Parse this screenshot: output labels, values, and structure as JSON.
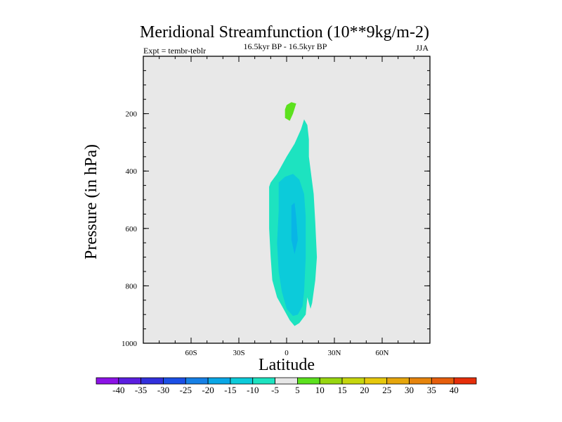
{
  "chart_data": {
    "type": "contour",
    "title": "Meridional Streamfunction (10**9kg/m-2)",
    "subtitle_left": "Expt = tembr-teblr",
    "subtitle_center": "16.5kyr BP - 16.5kyr BP",
    "subtitle_right": "JJA",
    "xlabel": "Latitude",
    "ylabel": "Pressure (in hPa)",
    "xlim": [
      -90,
      90
    ],
    "ylim": [
      0,
      1000
    ],
    "y_inverted": true,
    "plot_background": "#e8e8e8",
    "x_ticks": [
      {
        "value": -60,
        "label": "60S"
      },
      {
        "value": -30,
        "label": "30S"
      },
      {
        "value": 0,
        "label": "0"
      },
      {
        "value": 30,
        "label": "30N"
      },
      {
        "value": 60,
        "label": "60N"
      }
    ],
    "y_ticks": [
      {
        "value": 200,
        "label": "200"
      },
      {
        "value": 400,
        "label": "400"
      },
      {
        "value": 600,
        "label": "600"
      },
      {
        "value": 800,
        "label": "800"
      },
      {
        "value": 1000,
        "label": "1000"
      }
    ],
    "y_minor_step": 50,
    "x_minor_step": 10,
    "regions": [
      {
        "level": "5 to 10",
        "color": "#5ce11e",
        "points": [
          [
            0,
            170
          ],
          [
            3,
            160
          ],
          [
            6,
            165
          ],
          [
            4,
            200
          ],
          [
            2,
            225
          ],
          [
            -1,
            215
          ],
          [
            -1,
            185
          ]
        ]
      },
      {
        "level": "-10 to -5",
        "color": "#1de3c0",
        "points": [
          [
            -11,
            455
          ],
          [
            -10,
            440
          ],
          [
            -6,
            410
          ],
          [
            0,
            350
          ],
          [
            5,
            305
          ],
          [
            9,
            255
          ],
          [
            11,
            220
          ],
          [
            13,
            240
          ],
          [
            14,
            290
          ],
          [
            14,
            350
          ],
          [
            17,
            480
          ],
          [
            18,
            580
          ],
          [
            19,
            700
          ],
          [
            18,
            780
          ],
          [
            16,
            860
          ],
          [
            15,
            880
          ],
          [
            13,
            840
          ],
          [
            12,
            900
          ],
          [
            8,
            930
          ],
          [
            5,
            940
          ],
          [
            2,
            920
          ],
          [
            -2,
            880
          ],
          [
            -6,
            840
          ],
          [
            -9,
            780
          ],
          [
            -10,
            700
          ],
          [
            -11,
            600
          ]
        ]
      },
      {
        "level": "-15 to -10",
        "color": "#0ccbda",
        "points": [
          [
            -5,
            440
          ],
          [
            -1,
            420
          ],
          [
            4,
            410
          ],
          [
            8,
            430
          ],
          [
            11,
            480
          ],
          [
            12,
            560
          ],
          [
            12,
            700
          ],
          [
            11,
            820
          ],
          [
            10,
            870
          ],
          [
            7,
            900
          ],
          [
            4,
            905
          ],
          [
            0,
            880
          ],
          [
            -3,
            820
          ],
          [
            -5,
            750
          ],
          [
            -6,
            650
          ],
          [
            -5,
            540
          ]
        ]
      },
      {
        "level": "-20 to -15",
        "color": "#08b5e6",
        "points": [
          [
            3,
            520
          ],
          [
            5,
            510
          ],
          [
            6,
            560
          ],
          [
            7,
            640
          ],
          [
            5,
            690
          ],
          [
            3,
            640
          ]
        ]
      }
    ],
    "colorbar": {
      "labels": [
        "-40",
        "-35",
        "-30",
        "-25",
        "-20",
        "-15",
        "-10",
        "-5",
        "5",
        "10",
        "15",
        "20",
        "25",
        "30",
        "35",
        "40"
      ],
      "colors": [
        "#8c12e6",
        "#5b1ee0",
        "#3230dc",
        "#1b4fe6",
        "#1680e6",
        "#0aa7e6",
        "#0ccbda",
        "#1de3c0",
        "#e6e6e6",
        "#5ce11e",
        "#98d610",
        "#c6d60e",
        "#e6c80c",
        "#e6a60c",
        "#e6840c",
        "#e65e0c",
        "#e62e0a"
      ]
    }
  }
}
